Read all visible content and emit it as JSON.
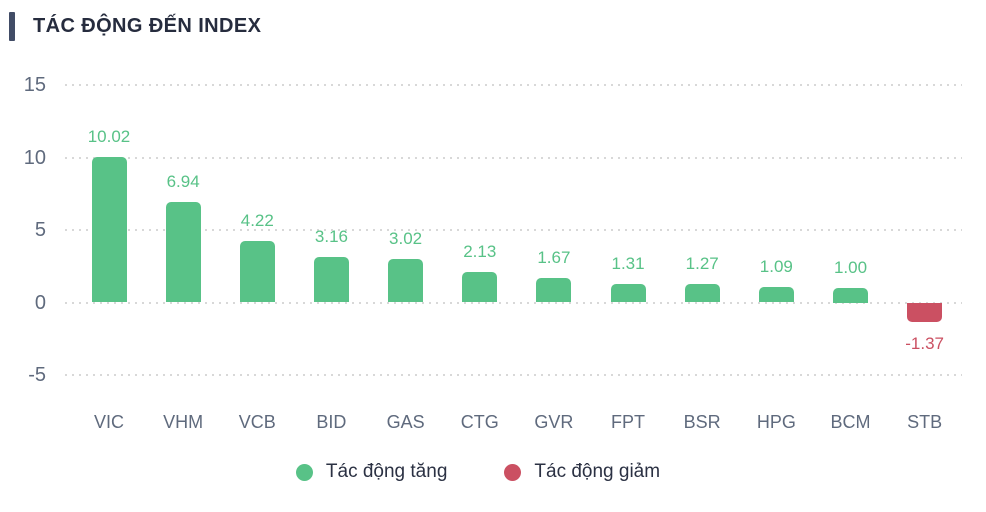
{
  "title": "TÁC ĐỘNG ĐẾN INDEX",
  "legend": {
    "items": [
      {
        "label": "Tác động tăng",
        "color": "#58c287"
      },
      {
        "label": "Tác động giảm",
        "color": "#cb5062"
      }
    ]
  },
  "chart_data": {
    "type": "bar",
    "title": "TÁC ĐỘNG ĐẾN INDEX",
    "categories": [
      "VIC",
      "VHM",
      "VCB",
      "BID",
      "GAS",
      "CTG",
      "GVR",
      "FPT",
      "BSR",
      "HPG",
      "BCM",
      "STB"
    ],
    "values": [
      10.02,
      6.94,
      4.22,
      3.16,
      3.02,
      2.13,
      1.67,
      1.31,
      1.27,
      1.09,
      1.0,
      -1.37
    ],
    "value_labels": [
      "10.02",
      "6.94",
      "4.22",
      "3.16",
      "3.02",
      "2.13",
      "1.67",
      "1.31",
      "1.27",
      "1.09",
      "1.00",
      "-1.37"
    ],
    "series": [
      {
        "name": "Tác động tăng",
        "color": "#58c287"
      },
      {
        "name": "Tác động giảm",
        "color": "#cb5062"
      }
    ],
    "xlabel": "",
    "ylabel": "",
    "yticks": [
      15,
      10,
      5,
      0,
      -5
    ],
    "ylim": [
      -5,
      15
    ],
    "grid": "horizontal-dotted",
    "legend_position": "bottom",
    "colors": {
      "positive": "#58c287",
      "negative": "#cb5062",
      "axis_text": "#5f6a7d",
      "grid": "#d8d8d8",
      "title_text": "#262c3e",
      "accent_bar": "#414c66",
      "legend_text": "#2b3143"
    }
  }
}
